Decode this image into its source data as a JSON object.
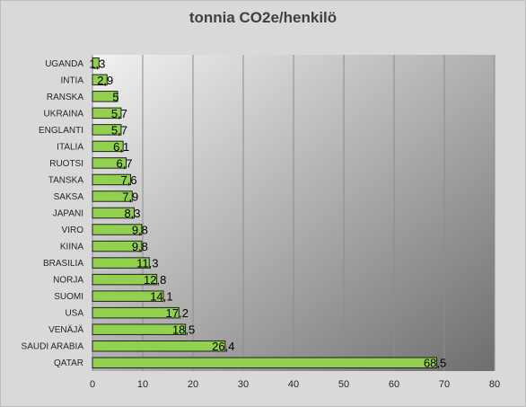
{
  "chart_data": {
    "type": "bar",
    "orientation": "horizontal",
    "title": "tonnia CO2e/henkilö",
    "categories": [
      "QATAR",
      "SAUDI ARABIA",
      "VENÄJÄ",
      "USA",
      "SUOMI",
      "NORJA",
      "BRASILIA",
      "KIINA",
      "VIRO",
      "JAPANI",
      "SAKSA",
      "TANSKA",
      "RUOTSI",
      "ITALIA",
      "ENGLANTI",
      "UKRAINA",
      "RANSKA",
      "INTIA",
      "UGANDA"
    ],
    "value_labels": [
      "68,5",
      "26,4",
      "18,5",
      "17,2",
      "14,1",
      "12,8",
      "11,3",
      "9,8",
      "9,8",
      "8,3",
      "7,9",
      "7,6",
      "6,7",
      "6,1",
      "5,7",
      "5,7",
      "5",
      "2,9",
      "1,3"
    ],
    "values": [
      68.5,
      26.4,
      18.5,
      17.2,
      14.1,
      12.8,
      11.3,
      9.8,
      9.8,
      8.3,
      7.9,
      7.6,
      6.7,
      6.1,
      5.7,
      5.7,
      5,
      2.9,
      1.3
    ],
    "xlim": [
      0,
      80
    ],
    "xticks": [
      "0",
      "10",
      "20",
      "30",
      "40",
      "50",
      "60",
      "70",
      "80"
    ],
    "xtick_values": [
      0,
      10,
      20,
      30,
      40,
      50,
      60,
      70,
      80
    ],
    "grid": "vertical",
    "colors": {
      "bar_fill": "#92d050",
      "bar_stroke": "#1f1f1f",
      "plot_gradient_light": "#f2f2f2",
      "plot_gradient_dark": "#6e6e6e",
      "grid": "#8c8c8c"
    }
  }
}
